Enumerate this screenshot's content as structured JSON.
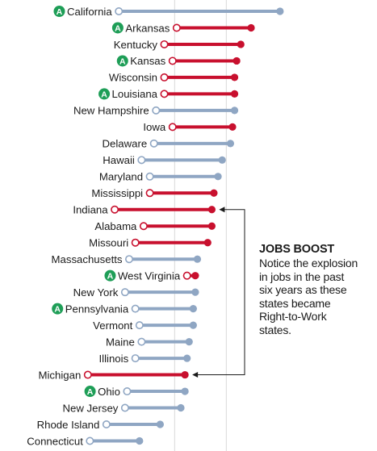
{
  "chart_data": {
    "type": "dumbbell",
    "title": "",
    "xlabel": "",
    "ylabel": "",
    "legend": {
      "symbol_meaning": "A",
      "placement": "inline before state name"
    },
    "colors": {
      "right_to_work": "#c8102e",
      "non_right_to_work": "#8fa6c3",
      "icon_badge": "#1e9e57",
      "gridline": "#d9d9d9",
      "connector": "#1a1a1a"
    },
    "xlim": [
      0,
      100
    ],
    "grid": true,
    "series": [
      {
        "state": "California",
        "start": 20,
        "end": 98,
        "type": "non_right_to_work",
        "marked": true
      },
      {
        "state": "Arkansas",
        "start": 48,
        "end": 84,
        "type": "right_to_work",
        "marked": true
      },
      {
        "state": "Kentucky",
        "start": 42,
        "end": 79,
        "type": "right_to_work",
        "marked": false
      },
      {
        "state": "Kansas",
        "start": 46,
        "end": 77,
        "type": "right_to_work",
        "marked": true
      },
      {
        "state": "Wisconsin",
        "start": 42,
        "end": 76,
        "type": "right_to_work",
        "marked": false
      },
      {
        "state": "Louisiana",
        "start": 42,
        "end": 76,
        "type": "right_to_work",
        "marked": true
      },
      {
        "state": "New Hampshire",
        "start": 38,
        "end": 76,
        "type": "non_right_to_work",
        "marked": false
      },
      {
        "state": "Iowa",
        "start": 46,
        "end": 75,
        "type": "right_to_work",
        "marked": false
      },
      {
        "state": "Delaware",
        "start": 37,
        "end": 74,
        "type": "non_right_to_work",
        "marked": false
      },
      {
        "state": "Hawaii",
        "start": 31,
        "end": 70,
        "type": "non_right_to_work",
        "marked": false
      },
      {
        "state": "Maryland",
        "start": 35,
        "end": 68,
        "type": "non_right_to_work",
        "marked": false
      },
      {
        "state": "Mississippi",
        "start": 35,
        "end": 66,
        "type": "right_to_work",
        "marked": false
      },
      {
        "state": "Indiana",
        "start": 18,
        "end": 65,
        "type": "right_to_work",
        "marked": false
      },
      {
        "state": "Alabama",
        "start": 32,
        "end": 65,
        "type": "right_to_work",
        "marked": false
      },
      {
        "state": "Missouri",
        "start": 28,
        "end": 63,
        "type": "right_to_work",
        "marked": false
      },
      {
        "state": "Massachusetts",
        "start": 25,
        "end": 58,
        "type": "non_right_to_work",
        "marked": false
      },
      {
        "state": "West Virginia",
        "start": 53,
        "end": 57,
        "type": "right_to_work",
        "marked": true
      },
      {
        "state": "New York",
        "start": 23,
        "end": 57,
        "type": "non_right_to_work",
        "marked": false
      },
      {
        "state": "Pennsylvania",
        "start": 28,
        "end": 56,
        "type": "non_right_to_work",
        "marked": true
      },
      {
        "state": "Vermont",
        "start": 30,
        "end": 56,
        "type": "non_right_to_work",
        "marked": false
      },
      {
        "state": "Maine",
        "start": 31,
        "end": 54,
        "type": "non_right_to_work",
        "marked": false
      },
      {
        "state": "Illinois",
        "start": 28,
        "end": 53,
        "type": "non_right_to_work",
        "marked": false
      },
      {
        "state": "Michigan",
        "start": 5,
        "end": 52,
        "type": "right_to_work",
        "marked": false
      },
      {
        "state": "Ohio",
        "start": 24,
        "end": 52,
        "type": "non_right_to_work",
        "marked": true
      },
      {
        "state": "New Jersey",
        "start": 23,
        "end": 50,
        "type": "non_right_to_work",
        "marked": false
      },
      {
        "state": "Rhode Island",
        "start": 14,
        "end": 40,
        "type": "non_right_to_work",
        "marked": false
      },
      {
        "state": "Connecticut",
        "start": 6,
        "end": 30,
        "type": "non_right_to_work",
        "marked": false
      }
    ],
    "annotation": {
      "title": "JOBS BOOST",
      "lines": [
        "Notice the explosion",
        "in jobs in the past",
        "six years as these",
        "states became",
        "Right-to-Work",
        "states."
      ],
      "points_to": [
        "Indiana",
        "Michigan"
      ]
    }
  }
}
